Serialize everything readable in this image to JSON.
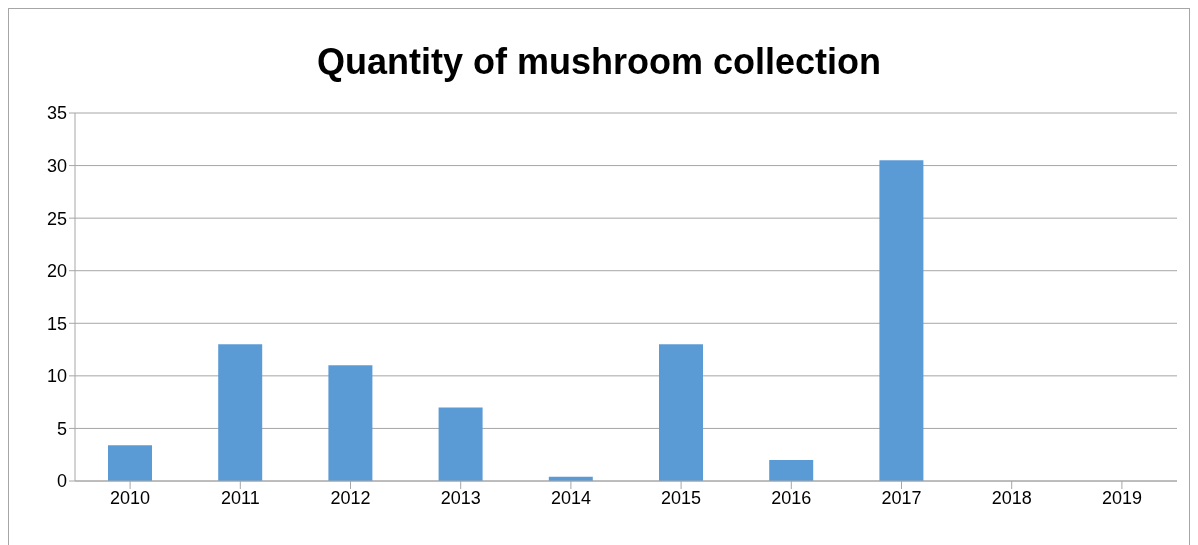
{
  "chart_data": {
    "type": "bar",
    "title": "Quantity of mushroom collection",
    "categories": [
      "2010",
      "2011",
      "2012",
      "2013",
      "2014",
      "2015",
      "2016",
      "2017",
      "2018",
      "2019"
    ],
    "values": [
      3.4,
      13,
      11,
      7,
      0.4,
      13,
      2,
      30.5,
      0,
      0
    ],
    "color": "#5b9bd5",
    "ylim": [
      0,
      35
    ],
    "yticks": [
      0,
      5,
      10,
      15,
      20,
      25,
      30,
      35
    ],
    "grid": "y",
    "legend": false
  }
}
